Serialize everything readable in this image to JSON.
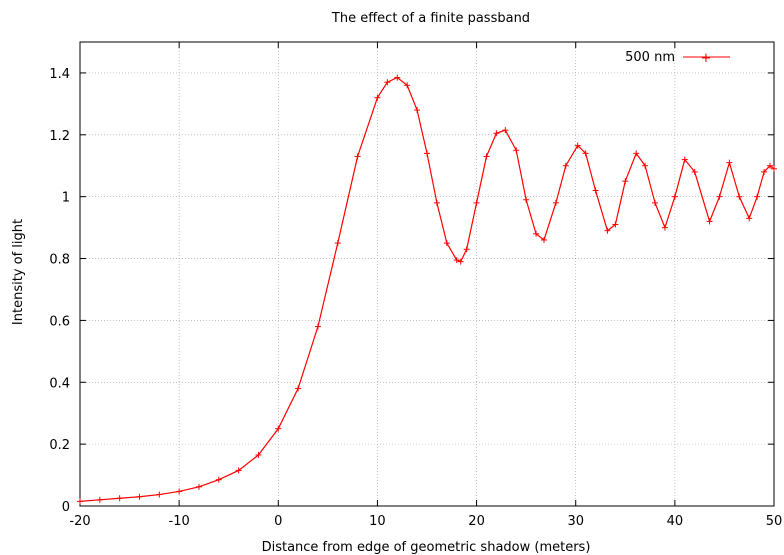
{
  "chart_data": {
    "type": "line",
    "title": "The effect of a finite passband",
    "xlabel": "Distance from edge of geometric shadow (meters)",
    "ylabel": "Intensity of light",
    "xlim": [
      -20,
      50
    ],
    "ylim": [
      0,
      1.5
    ],
    "xticks": [
      -20,
      -10,
      0,
      10,
      20,
      30,
      40,
      50
    ],
    "yticks": [
      0,
      0.2,
      0.4,
      0.6,
      0.8,
      1,
      1.2,
      1.4
    ],
    "xtick_labels": [
      "-20",
      "-10",
      "0",
      "10",
      "20",
      "30",
      "40",
      "50"
    ],
    "ytick_labels": [
      "0",
      "0.2",
      "0.4",
      "0.6",
      "0.8",
      "1",
      "1.2",
      "1.4"
    ],
    "grid": true,
    "legend_position": "top-right",
    "series": [
      {
        "name": "500 nm",
        "color": "#ff0000",
        "marker": "plus",
        "x": [
          -20,
          -18,
          -16,
          -14,
          -12,
          -10,
          -8,
          -6,
          -4,
          -2,
          0,
          2,
          4,
          6,
          8,
          10,
          11,
          12,
          13,
          14,
          15,
          16,
          17,
          18,
          18.4,
          19,
          20,
          21,
          22,
          22.9,
          24,
          25,
          26,
          26.8,
          28,
          29,
          30.2,
          31,
          32,
          33.2,
          34,
          35,
          36.1,
          37,
          38,
          39,
          40,
          41,
          42,
          43.5,
          44.5,
          45.5,
          46.5,
          47.5,
          48.3,
          49,
          49.6,
          50
        ],
        "y": [
          0.015,
          0.02,
          0.025,
          0.03,
          0.037,
          0.047,
          0.062,
          0.085,
          0.115,
          0.165,
          0.25,
          0.38,
          0.58,
          0.85,
          1.13,
          1.32,
          1.37,
          1.385,
          1.36,
          1.28,
          1.14,
          0.98,
          0.85,
          0.795,
          0.79,
          0.83,
          0.98,
          1.13,
          1.205,
          1.215,
          1.15,
          0.99,
          0.88,
          0.86,
          0.98,
          1.1,
          1.165,
          1.14,
          1.02,
          0.89,
          0.91,
          1.05,
          1.14,
          1.1,
          0.98,
          0.9,
          1.0,
          1.12,
          1.08,
          0.92,
          1.0,
          1.11,
          1.0,
          0.93,
          1.0,
          1.08,
          1.1,
          1.09
        ]
      }
    ]
  }
}
